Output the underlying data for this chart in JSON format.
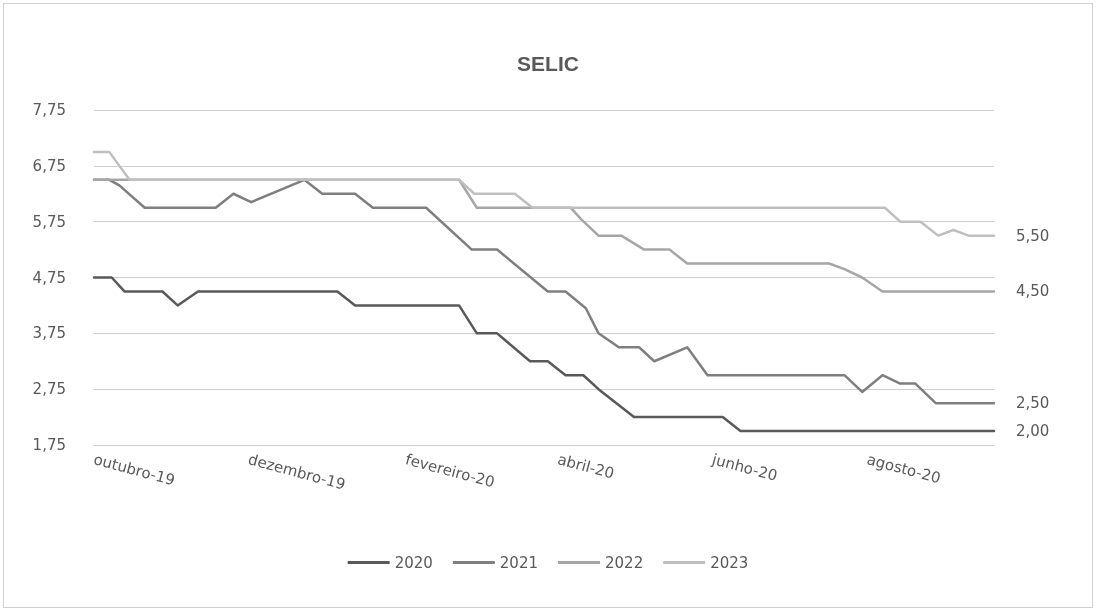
{
  "chart_data": {
    "type": "line",
    "title": "SELIC",
    "grid": "y",
    "legend": "bottom",
    "marker": "none",
    "line_style": "solid",
    "xlim": [
      "2019-10-01",
      "2020-09-20"
    ],
    "xticks": [
      {
        "value": "2019-10-01",
        "label": "outubro-19"
      },
      {
        "value": "2019-12-01",
        "label": "dezembro-19"
      },
      {
        "value": "2020-02-01",
        "label": "fevereiro-20"
      },
      {
        "value": "2020-04-01",
        "label": "abril-20"
      },
      {
        "value": "2020-06-01",
        "label": "junho-20"
      },
      {
        "value": "2020-08-01",
        "label": "agosto-20"
      }
    ],
    "ylim": [
      1.75,
      7.75
    ],
    "yticks": [
      {
        "value": 1.75,
        "label": "1,75"
      },
      {
        "value": 2.75,
        "label": "2,75"
      },
      {
        "value": 3.75,
        "label": "3,75"
      },
      {
        "value": 4.75,
        "label": "4,75"
      },
      {
        "value": 5.75,
        "label": "5,75"
      },
      {
        "value": 6.75,
        "label": "6,75"
      },
      {
        "value": 7.75,
        "label": "7,75"
      }
    ],
    "series": [
      {
        "name": "2020",
        "color": "#595959",
        "x": [
          "2019-10-01",
          "2019-10-08",
          "2019-10-13",
          "2019-10-28",
          "2019-11-03",
          "2019-11-11",
          "2020-01-05",
          "2020-01-12",
          "2020-02-22",
          "2020-02-29",
          "2020-03-08",
          "2020-03-21",
          "2020-03-28",
          "2020-04-04",
          "2020-04-11",
          "2020-04-17",
          "2020-05-01",
          "2020-06-05",
          "2020-06-12",
          "2020-09-20"
        ],
        "values": [
          4.75,
          4.75,
          4.5,
          4.5,
          4.25,
          4.5,
          4.5,
          4.25,
          4.25,
          3.75,
          3.75,
          3.25,
          3.25,
          3.0,
          3.0,
          2.75,
          2.25,
          2.25,
          2.0,
          2.0
        ],
        "value_labels": [
          null,
          null,
          null,
          null,
          null,
          null,
          null,
          null,
          null,
          null,
          null,
          null,
          null,
          null,
          null,
          null,
          null,
          null,
          null,
          "2,00"
        ]
      },
      {
        "name": "2021",
        "color": "#7f7f7f",
        "x": [
          "2019-10-01",
          "2019-10-07",
          "2019-10-11",
          "2019-10-21",
          "2019-11-18",
          "2019-11-25",
          "2019-12-02",
          "2019-12-23",
          "2019-12-30",
          "2020-01-12",
          "2020-01-19",
          "2020-02-09",
          "2020-02-27",
          "2020-03-08",
          "2020-03-28",
          "2020-04-04",
          "2020-04-12",
          "2020-04-17",
          "2020-04-25",
          "2020-05-03",
          "2020-05-09",
          "2020-05-22",
          "2020-05-30",
          "2020-07-23",
          "2020-07-30",
          "2020-08-07",
          "2020-08-14",
          "2020-08-20",
          "2020-08-28",
          "2020-09-20"
        ],
        "values": [
          6.5,
          6.5,
          6.4,
          6.0,
          6.0,
          6.25,
          6.1,
          6.5,
          6.25,
          6.25,
          6.0,
          6.0,
          5.25,
          5.25,
          4.5,
          4.5,
          4.2,
          3.75,
          3.5,
          3.5,
          3.25,
          3.5,
          3.0,
          3.0,
          2.7,
          3.0,
          2.85,
          2.85,
          2.5,
          2.5
        ],
        "value_labels": [
          null,
          null,
          null,
          null,
          null,
          null,
          null,
          null,
          null,
          null,
          null,
          null,
          null,
          null,
          null,
          null,
          null,
          null,
          null,
          null,
          null,
          null,
          null,
          null,
          null,
          null,
          null,
          null,
          null,
          "2,50"
        ]
      },
      {
        "name": "2022",
        "color": "#a6a6a6",
        "x": [
          "2019-10-01",
          "2020-02-22",
          "2020-02-29",
          "2020-04-06",
          "2020-04-10",
          "2020-04-17",
          "2020-04-26",
          "2020-05-05",
          "2020-05-15",
          "2020-05-22",
          "2020-07-17",
          "2020-07-23",
          "2020-07-30",
          "2020-08-07",
          "2020-09-20"
        ],
        "values": [
          6.5,
          6.5,
          6.0,
          6.0,
          5.8,
          5.5,
          5.5,
          5.25,
          5.25,
          5.0,
          5.0,
          4.9,
          4.75,
          4.5,
          4.5
        ],
        "value_labels": [
          null,
          null,
          null,
          null,
          null,
          null,
          null,
          null,
          null,
          null,
          null,
          null,
          null,
          null,
          "4,50"
        ]
      },
      {
        "name": "2023",
        "color": "#bfbfbf",
        "x": [
          "2019-10-01",
          "2019-10-07",
          "2019-10-15",
          "2020-02-22",
          "2020-02-28",
          "2020-03-15",
          "2020-03-22",
          "2020-08-08",
          "2020-08-14",
          "2020-08-22",
          "2020-08-29",
          "2020-09-04",
          "2020-09-10",
          "2020-09-20"
        ],
        "values": [
          7.0,
          7.0,
          6.5,
          6.5,
          6.25,
          6.25,
          6.0,
          6.0,
          5.75,
          5.75,
          5.5,
          5.6,
          5.5,
          5.5
        ],
        "value_labels": [
          null,
          null,
          null,
          null,
          null,
          null,
          null,
          null,
          null,
          null,
          null,
          null,
          null,
          "5,50"
        ]
      }
    ]
  }
}
